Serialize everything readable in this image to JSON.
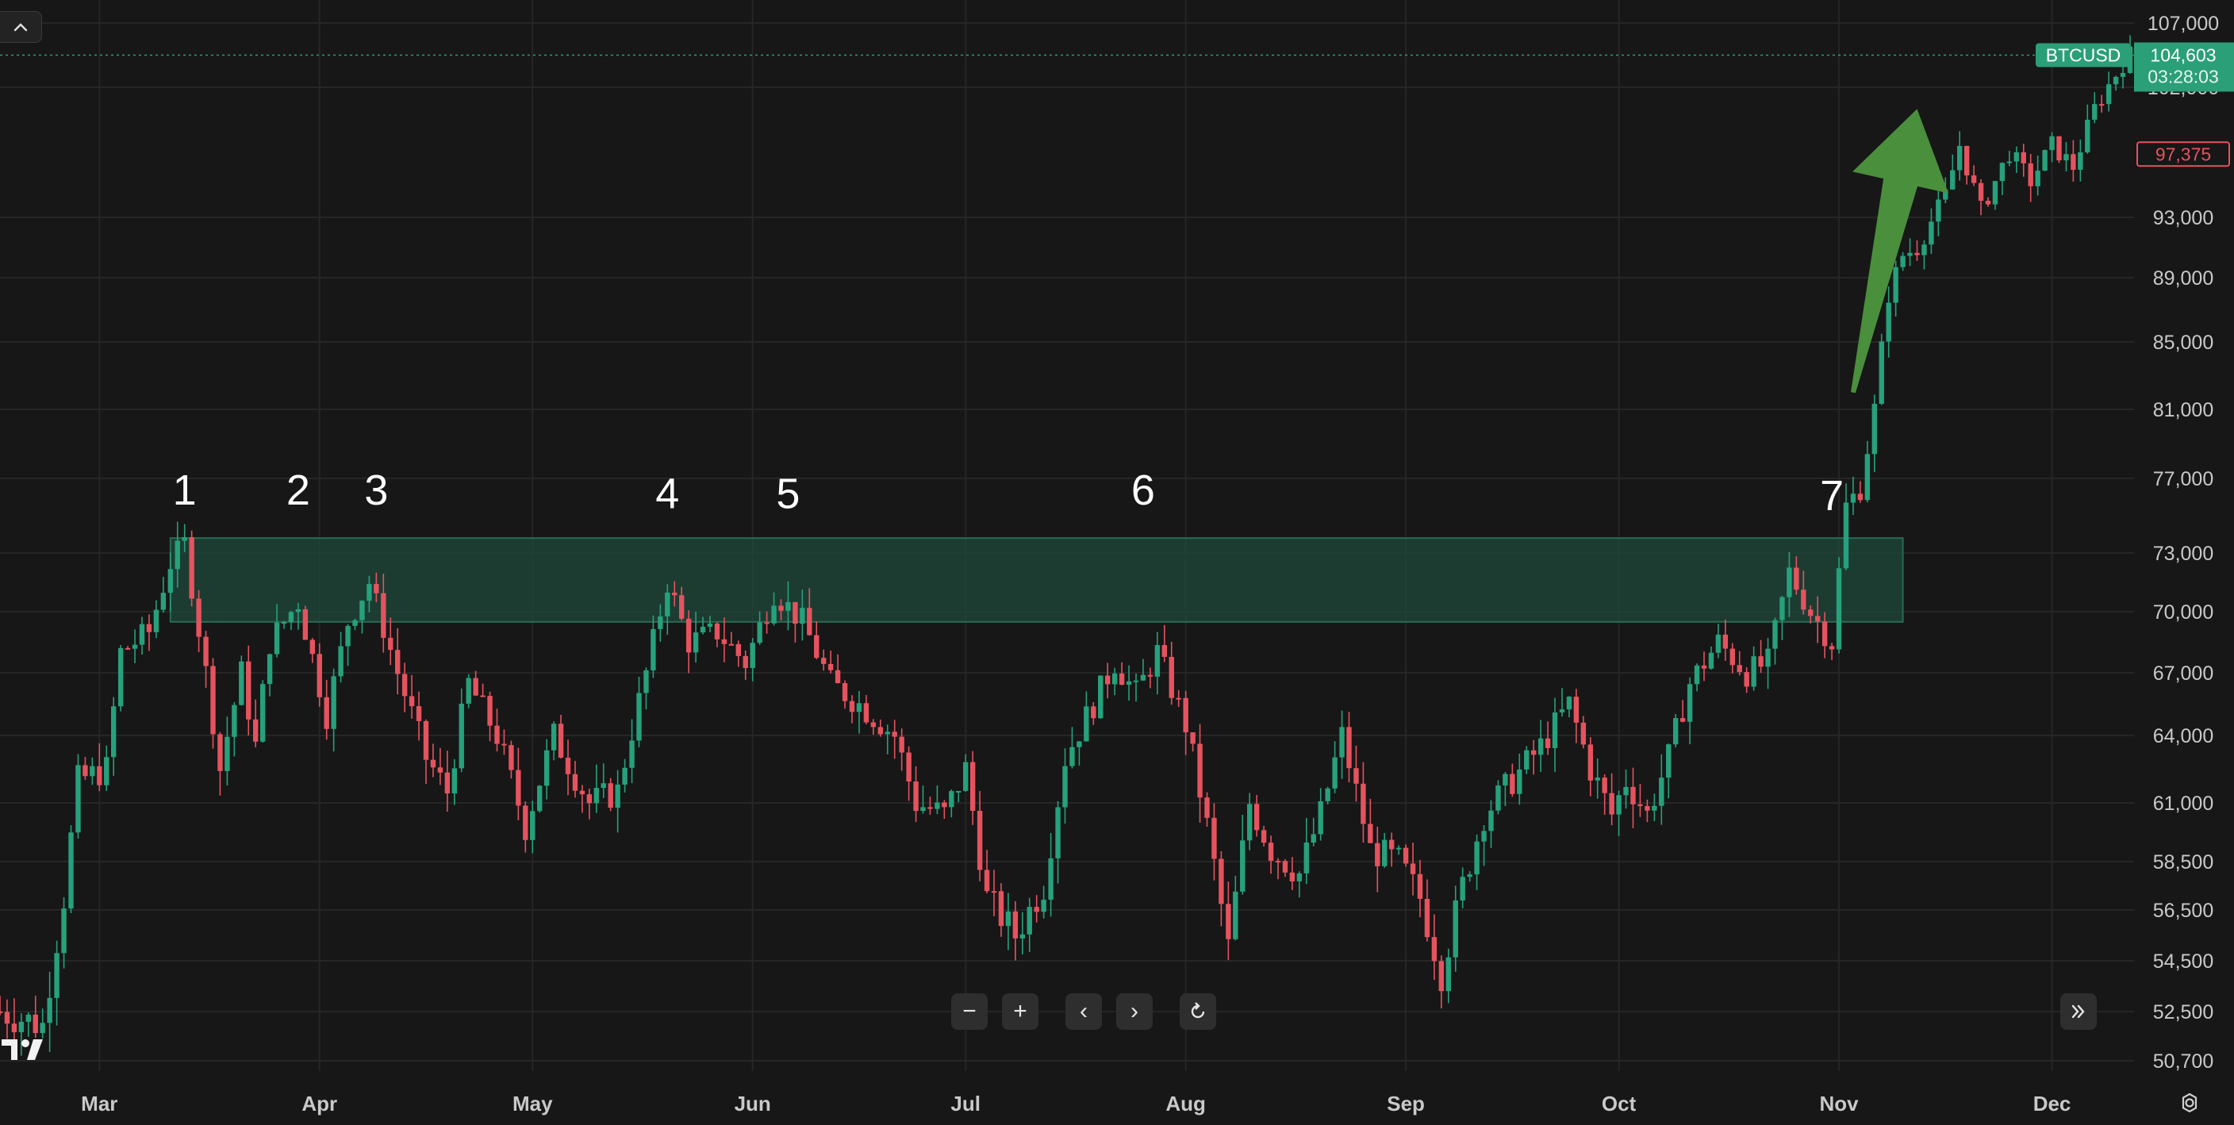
{
  "chart_data": {
    "type": "candlestick",
    "symbol": "BTCUSD",
    "last_price": "104,603",
    "countdown": "03:28:03",
    "marked_price": "97,375",
    "y_ticks": [
      107000,
      102000,
      93000,
      89000,
      85000,
      81000,
      77000,
      73000,
      70000,
      67000,
      64000,
      61000,
      58500,
      56500,
      54500,
      52500,
      50700
    ],
    "y_tick_labels": [
      "107,000",
      "102,000",
      "93,000",
      "89,000",
      "85,000",
      "81,000",
      "77,000",
      "73,000",
      "70,000",
      "67,000",
      "64,000",
      "61,000",
      "58,500",
      "56,500",
      "54,500",
      "52,500",
      "50,700"
    ],
    "x_labels": [
      {
        "label": "Mar",
        "day": 14
      },
      {
        "label": "Apr",
        "day": 45
      },
      {
        "label": "May",
        "day": 75
      },
      {
        "label": "Jun",
        "day": 106
      },
      {
        "label": "Jul",
        "day": 136
      },
      {
        "label": "Aug",
        "day": 167
      },
      {
        "label": "Sep",
        "day": 198
      },
      {
        "label": "Oct",
        "day": 228
      },
      {
        "label": "Nov",
        "day": 259
      },
      {
        "label": "Dec",
        "day": 289
      }
    ],
    "resistance_zone": {
      "from_price": 69500,
      "to_price": 73800,
      "start_day": 24,
      "end_day": 268
    },
    "annotations": [
      {
        "label": "1",
        "day": 26,
        "price": 75600
      },
      {
        "label": "2",
        "day": 42,
        "price": 75600
      },
      {
        "label": "3",
        "day": 53,
        "price": 75600
      },
      {
        "label": "4",
        "day": 94,
        "price": 75400
      },
      {
        "label": "5",
        "day": 111,
        "price": 75400
      },
      {
        "label": "6",
        "day": 161,
        "price": 75600
      },
      {
        "label": "7",
        "day": 258,
        "price": 75300
      }
    ],
    "arrow": {
      "from_day": 261,
      "from_price": 82000,
      "to_day": 270,
      "to_price": 100500,
      "color": "#4a8f3c"
    },
    "price_path": [
      {
        "day": 0,
        "price": 52500
      },
      {
        "day": 6,
        "price": 52000
      },
      {
        "day": 9,
        "price": 57000
      },
      {
        "day": 11,
        "price": 62000
      },
      {
        "day": 15,
        "price": 62500
      },
      {
        "day": 17,
        "price": 68000
      },
      {
        "day": 21,
        "price": 69000
      },
      {
        "day": 24,
        "price": 72500
      },
      {
        "day": 26,
        "price": 73500
      },
      {
        "day": 29,
        "price": 67000
      },
      {
        "day": 31,
        "price": 62500
      },
      {
        "day": 34,
        "price": 67000
      },
      {
        "day": 36,
        "price": 63500
      },
      {
        "day": 38,
        "price": 68500
      },
      {
        "day": 42,
        "price": 70500
      },
      {
        "day": 46,
        "price": 65000
      },
      {
        "day": 49,
        "price": 69500
      },
      {
        "day": 52,
        "price": 71500
      },
      {
        "day": 56,
        "price": 67000
      },
      {
        "day": 60,
        "price": 63000
      },
      {
        "day": 63,
        "price": 61500
      },
      {
        "day": 66,
        "price": 66500
      },
      {
        "day": 70,
        "price": 64000
      },
      {
        "day": 74,
        "price": 60000
      },
      {
        "day": 78,
        "price": 64000
      },
      {
        "day": 83,
        "price": 61000
      },
      {
        "day": 87,
        "price": 61500
      },
      {
        "day": 91,
        "price": 67000
      },
      {
        "day": 94,
        "price": 71500
      },
      {
        "day": 97,
        "price": 68500
      },
      {
        "day": 101,
        "price": 69000
      },
      {
        "day": 105,
        "price": 67500
      },
      {
        "day": 109,
        "price": 71000
      },
      {
        "day": 113,
        "price": 69500
      },
      {
        "day": 117,
        "price": 66500
      },
      {
        "day": 121,
        "price": 65500
      },
      {
        "day": 126,
        "price": 64000
      },
      {
        "day": 129,
        "price": 61000
      },
      {
        "day": 133,
        "price": 60500
      },
      {
        "day": 136,
        "price": 62500
      },
      {
        "day": 139,
        "price": 57000
      },
      {
        "day": 143,
        "price": 55500
      },
      {
        "day": 147,
        "price": 57500
      },
      {
        "day": 150,
        "price": 63000
      },
      {
        "day": 154,
        "price": 65500
      },
      {
        "day": 157,
        "price": 67500
      },
      {
        "day": 160,
        "price": 66000
      },
      {
        "day": 163,
        "price": 68000
      },
      {
        "day": 167,
        "price": 64500
      },
      {
        "day": 170,
        "price": 60000
      },
      {
        "day": 173,
        "price": 55000
      },
      {
        "day": 176,
        "price": 61000
      },
      {
        "day": 179,
        "price": 59000
      },
      {
        "day": 183,
        "price": 58000
      },
      {
        "day": 186,
        "price": 60500
      },
      {
        "day": 189,
        "price": 64000
      },
      {
        "day": 193,
        "price": 59000
      },
      {
        "day": 197,
        "price": 58500
      },
      {
        "day": 200,
        "price": 57000
      },
      {
        "day": 203,
        "price": 54000
      },
      {
        "day": 206,
        "price": 57500
      },
      {
        "day": 209,
        "price": 60500
      },
      {
        "day": 213,
        "price": 62000
      },
      {
        "day": 217,
        "price": 63500
      },
      {
        "day": 221,
        "price": 65500
      },
      {
        "day": 224,
        "price": 62500
      },
      {
        "day": 227,
        "price": 60500
      },
      {
        "day": 229,
        "price": 62000
      },
      {
        "day": 232,
        "price": 60500
      },
      {
        "day": 235,
        "price": 63000
      },
      {
        "day": 238,
        "price": 66500
      },
      {
        "day": 242,
        "price": 68500
      },
      {
        "day": 246,
        "price": 67000
      },
      {
        "day": 249,
        "price": 67500
      },
      {
        "day": 252,
        "price": 72000
      },
      {
        "day": 255,
        "price": 70000
      },
      {
        "day": 258,
        "price": 68500
      },
      {
        "day": 260,
        "price": 75500
      },
      {
        "day": 262,
        "price": 76500
      },
      {
        "day": 264,
        "price": 81000
      },
      {
        "day": 266,
        "price": 88000
      },
      {
        "day": 268,
        "price": 90500
      },
      {
        "day": 270,
        "price": 91000
      },
      {
        "day": 274,
        "price": 94500
      },
      {
        "day": 276,
        "price": 98000
      },
      {
        "day": 279,
        "price": 93500
      },
      {
        "day": 283,
        "price": 97500
      },
      {
        "day": 286,
        "price": 95500
      },
      {
        "day": 289,
        "price": 98000
      },
      {
        "day": 292,
        "price": 96500
      },
      {
        "day": 295,
        "price": 100500
      },
      {
        "day": 298,
        "price": 103000
      },
      {
        "day": 300,
        "price": 104600
      }
    ]
  },
  "controls": {
    "zoom_out": "−",
    "zoom_in": "+",
    "scroll_left": "‹",
    "scroll_right": "›"
  },
  "colors": {
    "up": "#26a17b",
    "down": "#e5535f",
    "zone": "#1f4a3c",
    "arrow": "#4a8f3c",
    "badge": "#2b9f78"
  }
}
